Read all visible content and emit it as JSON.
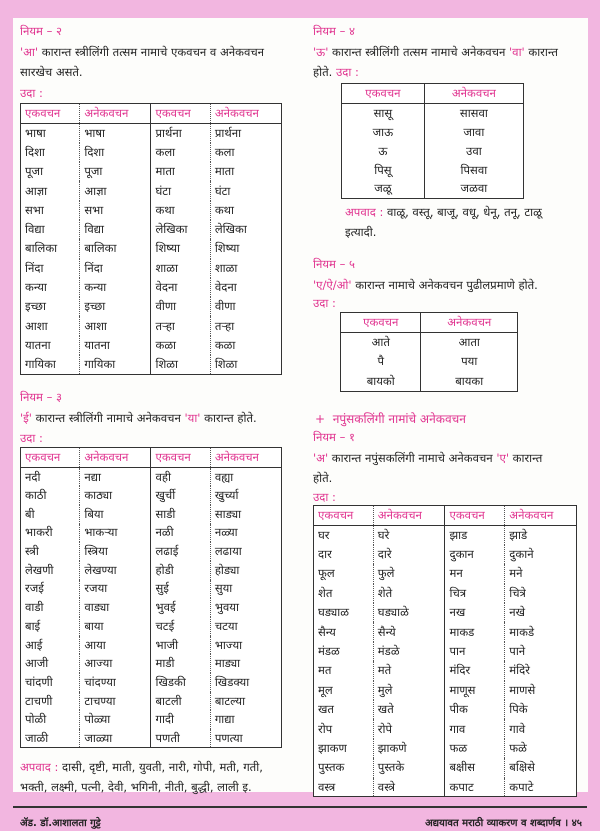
{
  "left": {
    "rule2": {
      "title": "नियम – २",
      "mark": "'आ'",
      "text1": " कारान्त स्त्रीलिंगी तत्सम नामाचे एकवचन व अनेकवचन",
      "text2": "सारखेच असते.",
      "example_label": "उदा :",
      "headers": [
        "एकवचन",
        "अनेकवचन",
        "एकवचन",
        "अनेकवचन"
      ],
      "rows": [
        [
          "भाषा",
          "भाषा",
          "प्रार्थना",
          "प्रार्थना"
        ],
        [
          "दिशा",
          "दिशा",
          "कला",
          "कला"
        ],
        [
          "पूजा",
          "पूजा",
          "माता",
          "माता"
        ],
        [
          "आज्ञा",
          "आज्ञा",
          "घंटा",
          "घंटा"
        ],
        [
          "सभा",
          "सभा",
          "कथा",
          "कथा"
        ],
        [
          "विद्या",
          "विद्या",
          "लेखिका",
          "लेखिका"
        ],
        [
          "बालिका",
          "बालिका",
          "शिष्या",
          "शिष्या"
        ],
        [
          "निंदा",
          "निंदा",
          "शाळा",
          "शाळा"
        ],
        [
          "कन्या",
          "कन्या",
          "वेदना",
          "वेदना"
        ],
        [
          "इच्छा",
          "इच्छा",
          "वीणा",
          "वीणा"
        ],
        [
          "आशा",
          "आशा",
          "तऱ्हा",
          "तऱ्हा"
        ],
        [
          "यातना",
          "यातना",
          "कळा",
          "कळा"
        ],
        [
          "गायिका",
          "गायिका",
          "शिळा",
          "शिळा"
        ]
      ]
    },
    "rule3": {
      "title": "नियम – ३",
      "mark1": "'ई'",
      "text1": " कारान्त स्त्रीलिंगी नामाचे अनेकवचन ",
      "mark2": "'या'",
      "text2": " कारान्त होते.",
      "example_label": "उदा :",
      "headers": [
        "एकवचन",
        "अनेकवचन",
        "एकवचन",
        "अनेकवचन"
      ],
      "rows": [
        [
          "नदी",
          "नद्या",
          "वही",
          "वह्या"
        ],
        [
          "काठी",
          "काठ्या",
          "खुर्ची",
          "खुर्च्या"
        ],
        [
          "बी",
          "बिया",
          "साडी",
          "साड्या"
        ],
        [
          "भाकरी",
          "भाकऱ्या",
          "नळी",
          "नळ्या"
        ],
        [
          "स्त्री",
          "स्त्रिया",
          "लढाई",
          "लढाया"
        ],
        [
          "लेखणी",
          "लेखण्या",
          "होडी",
          "होड्या"
        ],
        [
          "रजई",
          "रजया",
          "सुई",
          "सुया"
        ],
        [
          "वाडी",
          "वाड्या",
          "भुवई",
          "भुवया"
        ],
        [
          "बाई",
          "बाया",
          "चटई",
          "चटया"
        ],
        [
          "आई",
          "आया",
          "भाजी",
          "भाज्या"
        ],
        [
          "आजी",
          "आज्या",
          "माडी",
          "माड्या"
        ],
        [
          "चांदणी",
          "चांदण्या",
          "खिडकी",
          "खिडक्या"
        ],
        [
          "टाचणी",
          "टाचण्या",
          "बाटली",
          "बाटल्या"
        ],
        [
          "पोळी",
          "पोळ्या",
          "गादी",
          "गाद्या"
        ],
        [
          "जाळी",
          "जाळ्या",
          "पणती",
          "पणत्या"
        ]
      ],
      "exception_label": "अपवाद :",
      "exception1": " दासी, दृष्टी, माती, युवती, नारी, गोपी, मती, गती,",
      "exception2": "भक्ती, लक्ष्मी, पत्नी, देवी, भगिनी, नीती, बुद्धी, लाली इ."
    }
  },
  "right": {
    "rule4": {
      "title": "नियम – ४",
      "mark1": "'ऊ'",
      "text1": " कारान्त स्त्रीलिंगी तत्सम नामाचे अनेकवचन ",
      "mark2": "'वा'",
      "text2": " कारान्त",
      "text3": "होते. ",
      "example_label": "उदा :",
      "headers": [
        "एकवचन",
        "अनेकवचन"
      ],
      "rows": [
        [
          "सासू",
          "सासवा"
        ],
        [
          "जाऊ",
          "जावा"
        ],
        [
          "ऊ",
          "उवा"
        ],
        [
          "पिसू",
          "पिसवा"
        ],
        [
          "जळू",
          "जळवा"
        ]
      ],
      "exception_label": "अपवाद :",
      "exception1": " वाळू, वस्तू, बाजू, वधू, धेनू, तनू, टाळू",
      "exception2": "इत्यादी."
    },
    "rule5": {
      "title": "नियम – ५",
      "mark": "'ए/ऐ/ओ'",
      "text": " कारान्त नामाचे अनेकवचन पुढीलप्रमाणे होते.",
      "example_label": "उदा :",
      "headers": [
        "एकवचन",
        "अनेकवचन"
      ],
      "rows": [
        [
          "आते",
          "आता"
        ],
        [
          "पै",
          "पया"
        ],
        [
          "बायको",
          "बायका"
        ]
      ]
    },
    "neuter": {
      "bullet": "+",
      "heading": "नपुंसकलिंगी नामांचे अनेकवचन",
      "title": "नियम – १",
      "mark1": "'अ'",
      "text1": " कारान्त नपुंसकलिंगी नामाचे अनेकवचन ",
      "mark2": "'ए'",
      "text2": " कारान्त",
      "text3": "होते.",
      "example_label": "उदा :",
      "headers": [
        "एकवचन",
        "अनेकवचन",
        "एकवचन",
        "अनेकवचन"
      ],
      "rows": [
        [
          "घर",
          "घरे",
          "झाड",
          "झाडे"
        ],
        [
          "दार",
          "दारे",
          "दुकान",
          "दुकाने"
        ],
        [
          "फूल",
          "फुले",
          "मन",
          "मने"
        ],
        [
          "शेत",
          "शेते",
          "चित्र",
          "चित्रे"
        ],
        [
          "घड्याळ",
          "घड्याळे",
          "नख",
          "नखे"
        ],
        [
          "सैन्य",
          "सैन्ये",
          "माकड",
          "माकडे"
        ],
        [
          "मंडळ",
          "मंडळे",
          "पान",
          "पाने"
        ],
        [
          "मत",
          "मते",
          "मंदिर",
          "मंदिरे"
        ],
        [
          "मूल",
          "मुले",
          "माणूस",
          "माणसे"
        ],
        [
          "खत",
          "खते",
          "पीक",
          "पिके"
        ],
        [
          "रोप",
          "रोपे",
          "गाव",
          "गावे"
        ],
        [
          "झाकण",
          "झाकणे",
          "फळ",
          "फळे"
        ],
        [
          "पुस्तक",
          "पुस्तके",
          "बक्षीस",
          "बक्षिसे"
        ],
        [
          "वस्त्र",
          "वस्त्रे",
          "कपाट",
          "कपाटे"
        ]
      ]
    }
  },
  "footer": {
    "author": "ॲड. डॉ.आशालता गुट्टे",
    "book": "अद्ययावत मराठी व्याकरण व शब्दार्णव । ४५"
  },
  "colors": {
    "accent": "#e0338f",
    "background": "#f2b6e0"
  }
}
